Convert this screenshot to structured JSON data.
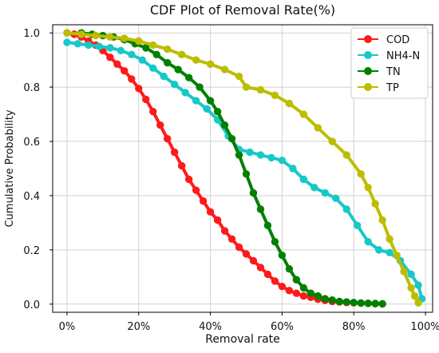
{
  "chart_data": {
    "type": "line",
    "title": "CDF Plot of Removal Rate(%)",
    "xlabel": "Removal rate",
    "ylabel": "Cumulative Probability",
    "xlim": [
      -0.04,
      1.02
    ],
    "ylim": [
      -0.03,
      1.03
    ],
    "xticks": [
      0,
      0.2,
      0.4,
      0.6,
      0.8,
      1.0
    ],
    "xtick_labels": [
      "0%",
      "20%",
      "40%",
      "60%",
      "80%",
      "100%"
    ],
    "yticks": [
      0,
      0.2,
      0.4,
      0.6,
      0.8,
      1.0
    ],
    "ytick_labels": [
      "0.0",
      "0.2",
      "0.4",
      "0.6",
      "0.8",
      "1.0"
    ],
    "grid": true,
    "legend_position": "top-right",
    "series": [
      {
        "name": "COD",
        "color": "#ff1a1a",
        "x": [
          0.0,
          0.02,
          0.04,
          0.06,
          0.08,
          0.1,
          0.12,
          0.14,
          0.16,
          0.18,
          0.2,
          0.22,
          0.24,
          0.26,
          0.28,
          0.3,
          0.32,
          0.34,
          0.36,
          0.38,
          0.4,
          0.42,
          0.44,
          0.46,
          0.48,
          0.5,
          0.52,
          0.54,
          0.56,
          0.58,
          0.6,
          0.62,
          0.64,
          0.66,
          0.68,
          0.7,
          0.72,
          0.74,
          0.76,
          0.78,
          0.8,
          0.82,
          0.84,
          0.86,
          0.88
        ],
        "y": [
          1.0,
          0.995,
          0.985,
          0.97,
          0.955,
          0.935,
          0.91,
          0.885,
          0.86,
          0.83,
          0.795,
          0.755,
          0.71,
          0.66,
          0.61,
          0.56,
          0.51,
          0.46,
          0.42,
          0.38,
          0.34,
          0.31,
          0.27,
          0.24,
          0.21,
          0.185,
          0.16,
          0.135,
          0.11,
          0.085,
          0.065,
          0.05,
          0.04,
          0.03,
          0.025,
          0.018,
          0.014,
          0.01,
          0.008,
          0.006,
          0.005,
          0.004,
          0.003,
          0.002,
          0.001
        ]
      },
      {
        "name": "NH4-N",
        "color": "#18c8c8",
        "x": [
          0.0,
          0.03,
          0.06,
          0.09,
          0.12,
          0.15,
          0.18,
          0.21,
          0.24,
          0.27,
          0.3,
          0.33,
          0.36,
          0.39,
          0.42,
          0.45,
          0.48,
          0.51,
          0.54,
          0.57,
          0.6,
          0.63,
          0.66,
          0.69,
          0.72,
          0.75,
          0.78,
          0.81,
          0.84,
          0.87,
          0.9,
          0.93,
          0.96,
          0.98,
          0.99
        ],
        "y": [
          0.965,
          0.96,
          0.955,
          0.95,
          0.945,
          0.935,
          0.92,
          0.9,
          0.87,
          0.84,
          0.81,
          0.78,
          0.75,
          0.72,
          0.68,
          0.62,
          0.57,
          0.56,
          0.55,
          0.54,
          0.53,
          0.5,
          0.46,
          0.43,
          0.41,
          0.39,
          0.35,
          0.29,
          0.23,
          0.2,
          0.19,
          0.16,
          0.11,
          0.07,
          0.02
        ]
      },
      {
        "name": "TN",
        "color": "#008000",
        "x": [
          0.04,
          0.07,
          0.1,
          0.13,
          0.16,
          0.19,
          0.22,
          0.25,
          0.28,
          0.31,
          0.34,
          0.37,
          0.4,
          0.42,
          0.44,
          0.46,
          0.48,
          0.5,
          0.52,
          0.54,
          0.56,
          0.58,
          0.6,
          0.62,
          0.64,
          0.66,
          0.68,
          0.7,
          0.72,
          0.74,
          0.76,
          0.78,
          0.8,
          0.82,
          0.84,
          0.86,
          0.88
        ],
        "y": [
          1.0,
          0.995,
          0.99,
          0.985,
          0.975,
          0.96,
          0.945,
          0.92,
          0.89,
          0.865,
          0.835,
          0.8,
          0.75,
          0.71,
          0.66,
          0.61,
          0.55,
          0.48,
          0.41,
          0.35,
          0.29,
          0.23,
          0.18,
          0.13,
          0.09,
          0.06,
          0.04,
          0.03,
          0.02,
          0.015,
          0.01,
          0.008,
          0.006,
          0.004,
          0.003,
          0.002,
          0.001
        ]
      },
      {
        "name": "TP",
        "color": "#bdbd00",
        "x": [
          0.0,
          0.04,
          0.08,
          0.12,
          0.16,
          0.2,
          0.24,
          0.28,
          0.32,
          0.36,
          0.4,
          0.44,
          0.48,
          0.5,
          0.54,
          0.58,
          0.62,
          0.66,
          0.7,
          0.74,
          0.78,
          0.82,
          0.84,
          0.86,
          0.88,
          0.9,
          0.92,
          0.94,
          0.96,
          0.97,
          0.98
        ],
        "y": [
          1.0,
          0.995,
          0.99,
          0.985,
          0.98,
          0.97,
          0.955,
          0.94,
          0.92,
          0.9,
          0.885,
          0.865,
          0.84,
          0.8,
          0.79,
          0.77,
          0.74,
          0.7,
          0.65,
          0.6,
          0.55,
          0.48,
          0.43,
          0.37,
          0.31,
          0.24,
          0.18,
          0.12,
          0.06,
          0.03,
          0.005
        ]
      }
    ]
  }
}
